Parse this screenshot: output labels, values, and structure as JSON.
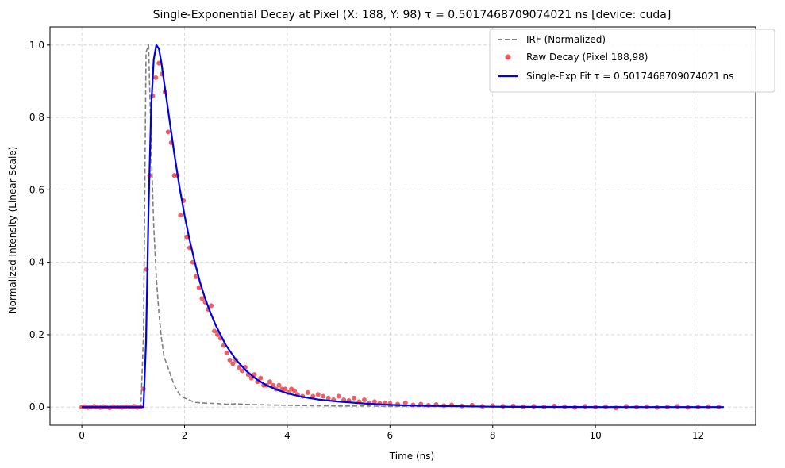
{
  "chart_data": {
    "type": "line",
    "title": "Single-Exponential Decay at Pixel (X: 188, Y: 98)  τ = 0.5017468709074021 ns  [device: cuda]",
    "xlabel": "Time (ns)",
    "ylabel": "Normalized Intensity (Linear Scale)",
    "xlim": [
      -0.62,
      13.12
    ],
    "ylim": [
      -0.05,
      1.05
    ],
    "xticks": [
      0,
      2,
      4,
      6,
      8,
      10,
      12
    ],
    "xtick_labels": [
      "0",
      "2",
      "4",
      "6",
      "8",
      "10",
      "12"
    ],
    "yticks": [
      0.0,
      0.2,
      0.4,
      0.6,
      0.8,
      1.0
    ],
    "ytick_labels": [
      "0.0",
      "0.2",
      "0.4",
      "0.6",
      "0.8",
      "1.0"
    ],
    "grid": true,
    "legend_position": "top-right",
    "series": [
      {
        "name": "IRF (Normalized)",
        "style": "dashed-line",
        "color": "#808080",
        "x": [
          0,
          1.0,
          1.15,
          1.2,
          1.25,
          1.3,
          1.35,
          1.4,
          1.45,
          1.5,
          1.55,
          1.6,
          1.7,
          1.8,
          1.9,
          2.0,
          2.2,
          2.4,
          2.6,
          2.8,
          3.0,
          3.3,
          3.6,
          4.0,
          4.5,
          5.0,
          5.5,
          6.0,
          7.0,
          8.0,
          9.0,
          10.0,
          11.0,
          12.0,
          12.5
        ],
        "y": [
          0,
          0,
          0.0,
          0.2,
          0.98,
          1.0,
          0.72,
          0.5,
          0.36,
          0.26,
          0.19,
          0.14,
          0.1,
          0.06,
          0.035,
          0.025,
          0.013,
          0.011,
          0.01,
          0.008,
          0.009,
          0.007,
          0.006,
          0.005,
          0.004,
          0.003,
          0.003,
          0.002,
          0.002,
          0.001,
          0.001,
          0.001,
          0.001,
          0.0,
          0.0
        ]
      },
      {
        "name": "Raw Decay (Pixel 188,98)",
        "style": "markers",
        "color": "#e8383c",
        "x": [
          0.0,
          0.06,
          0.12,
          0.18,
          0.24,
          0.3,
          0.36,
          0.42,
          0.48,
          0.54,
          0.6,
          0.66,
          0.72,
          0.78,
          0.84,
          0.9,
          0.96,
          1.02,
          1.08,
          1.14,
          1.2,
          1.26,
          1.32,
          1.38,
          1.44,
          1.5,
          1.56,
          1.62,
          1.68,
          1.74,
          1.8,
          1.86,
          1.92,
          1.98,
          2.04,
          2.1,
          2.16,
          2.22,
          2.28,
          2.34,
          2.4,
          2.46,
          2.52,
          2.58,
          2.64,
          2.7,
          2.76,
          2.82,
          2.88,
          2.94,
          3.0,
          3.06,
          3.12,
          3.18,
          3.24,
          3.3,
          3.36,
          3.42,
          3.48,
          3.54,
          3.6,
          3.66,
          3.72,
          3.78,
          3.84,
          3.9,
          3.96,
          4.02,
          4.08,
          4.14,
          4.2,
          4.3,
          4.4,
          4.5,
          4.6,
          4.7,
          4.8,
          4.9,
          5.0,
          5.1,
          5.2,
          5.3,
          5.4,
          5.5,
          5.6,
          5.7,
          5.8,
          5.9,
          6.0,
          6.15,
          6.3,
          6.45,
          6.6,
          6.75,
          6.9,
          7.05,
          7.2,
          7.4,
          7.6,
          7.8,
          8.0,
          8.2,
          8.4,
          8.6,
          8.8,
          9.0,
          9.2,
          9.4,
          9.6,
          9.8,
          10.0,
          10.2,
          10.4,
          10.6,
          10.8,
          11.0,
          11.2,
          11.4,
          11.6,
          11.8,
          12.0,
          12.2,
          12.4
        ],
        "y": [
          0.0,
          0.001,
          -0.001,
          0.0,
          0.002,
          0.0,
          -0.001,
          0.001,
          0.0,
          -0.002,
          0.001,
          0.0,
          0.0,
          -0.001,
          0.001,
          0.0,
          0.0,
          0.002,
          -0.001,
          0.0,
          0.05,
          0.38,
          0.64,
          0.86,
          0.91,
          0.95,
          0.92,
          0.87,
          0.76,
          0.73,
          0.64,
          0.64,
          0.53,
          0.57,
          0.47,
          0.44,
          0.4,
          0.36,
          0.33,
          0.3,
          0.29,
          0.27,
          0.28,
          0.21,
          0.2,
          0.19,
          0.17,
          0.15,
          0.13,
          0.12,
          0.13,
          0.11,
          0.1,
          0.11,
          0.09,
          0.08,
          0.09,
          0.07,
          0.08,
          0.06,
          0.06,
          0.07,
          0.06,
          0.05,
          0.06,
          0.05,
          0.05,
          0.04,
          0.05,
          0.045,
          0.035,
          0.03,
          0.04,
          0.03,
          0.035,
          0.03,
          0.025,
          0.02,
          0.03,
          0.02,
          0.018,
          0.025,
          0.015,
          0.02,
          0.012,
          0.015,
          0.01,
          0.012,
          0.01,
          0.008,
          0.012,
          0.006,
          0.008,
          0.005,
          0.007,
          0.004,
          0.006,
          0.003,
          0.005,
          0.002,
          0.004,
          0.002,
          0.003,
          0.001,
          0.002,
          0.0,
          0.003,
          0.001,
          -0.001,
          0.002,
          0.0,
          0.001,
          -0.002,
          0.002,
          0.0,
          0.001,
          -0.001,
          0.0,
          0.002,
          -0.001,
          0.0,
          0.001,
          0.0
        ]
      },
      {
        "name": "Single-Exp Fit  τ = 0.5017468709074021 ns",
        "style": "solid-line",
        "color": "#0000e0",
        "x": [
          0,
          1.0,
          1.2,
          1.25,
          1.3,
          1.35,
          1.4,
          1.45,
          1.5,
          1.55,
          1.6,
          1.7,
          1.8,
          1.9,
          2.0,
          2.1,
          2.2,
          2.3,
          2.4,
          2.5,
          2.6,
          2.8,
          3.0,
          3.2,
          3.4,
          3.6,
          3.8,
          4.0,
          4.3,
          4.6,
          5.0,
          5.5,
          6.0,
          6.5,
          7.0,
          8.0,
          9.0,
          10.0,
          11.0,
          12.0,
          12.5
        ],
        "y": [
          0,
          0,
          0.0,
          0.18,
          0.55,
          0.83,
          0.96,
          1.0,
          0.99,
          0.95,
          0.9,
          0.8,
          0.7,
          0.61,
          0.53,
          0.46,
          0.4,
          0.345,
          0.3,
          0.262,
          0.228,
          0.172,
          0.131,
          0.1,
          0.077,
          0.06,
          0.048,
          0.038,
          0.028,
          0.021,
          0.015,
          0.01,
          0.006,
          0.004,
          0.003,
          0.001,
          0.0005,
          0.0,
          0.0,
          0.0,
          0.0
        ]
      }
    ]
  }
}
